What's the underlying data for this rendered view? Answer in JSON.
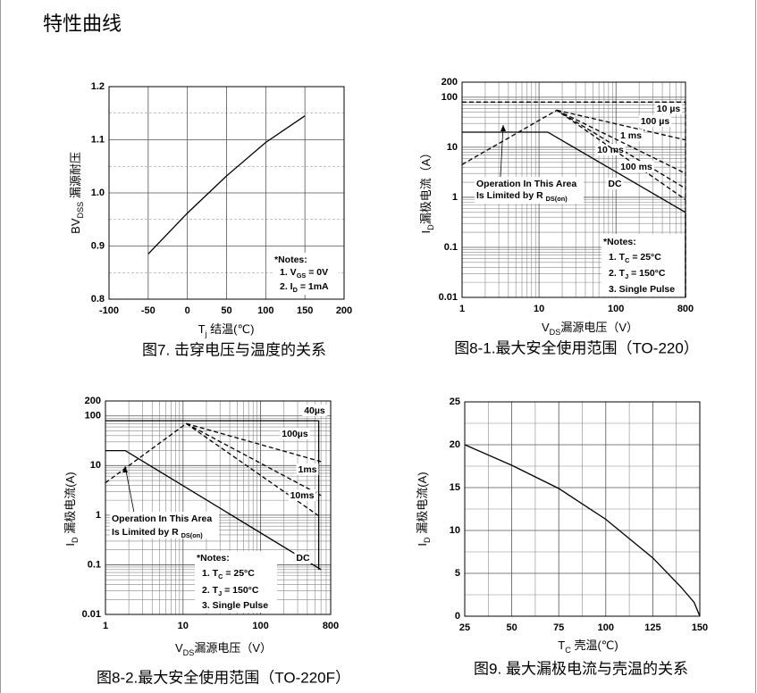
{
  "header": {
    "title": "特性曲线"
  },
  "chart_data": [
    {
      "type": "line",
      "xlabel": [
        "T",
        "j",
        " 结温(℃)"
      ],
      "ylabel": [
        "BV",
        "DSS",
        " 漏源耐压"
      ],
      "caption": "图7. 击穿电压与温度的关系",
      "x": [
        -50,
        0,
        50,
        100,
        150
      ],
      "values": [
        0.885,
        0.962,
        1.032,
        1.095,
        1.145
      ],
      "color": "#000000",
      "xlim": [
        -100,
        200
      ],
      "ylim": [
        0.8,
        1.2
      ],
      "xticks": [
        -100,
        -50,
        0,
        50,
        100,
        150,
        200
      ],
      "yticks": [
        0.8,
        0.9,
        {
          "value": 1,
          "label": "1.0"
        },
        1.1,
        1.2
      ],
      "yminor": [
        0.85,
        0.95,
        1.05,
        1.15
      ],
      "grid": true,
      "notes": [
        "*Notes:",
        [
          "1. V",
          "GS",
          " = 0V"
        ],
        [
          "2. I",
          "D",
          " = 1mA"
        ]
      ]
    },
    {
      "type": "line",
      "xscale": "log",
      "yscale": "log",
      "xlabel": [
        "V",
        "DS",
        "漏源电压（V）"
      ],
      "ylabel": [
        "I",
        "D",
        "漏极电流（A）"
      ],
      "caption": "图8-1.最大安全使用范围（TO-220）",
      "xlim": [
        1,
        800
      ],
      "ylim": [
        0.01,
        200
      ],
      "xticks": [
        1,
        10,
        100,
        800
      ],
      "yticks": [
        0.01,
        0.1,
        1,
        10,
        100,
        200
      ],
      "grid": true,
      "xminor": [
        2,
        3,
        4,
        5,
        6,
        7,
        8,
        9,
        20,
        30,
        40,
        50,
        60,
        70,
        80,
        90,
        200,
        300,
        400,
        500,
        600,
        700
      ],
      "yminor": [
        0.02,
        0.03,
        0.04,
        0.05,
        0.06,
        0.07,
        0.08,
        0.09,
        0.2,
        0.3,
        0.4,
        0.5,
        0.6,
        0.7,
        0.8,
        0.9,
        2,
        3,
        4,
        5,
        6,
        7,
        8,
        9,
        20,
        30,
        40,
        50,
        60,
        70,
        80,
        90
      ],
      "series": [
        {
          "name": "10 µs",
          "color": "#000000",
          "style": "dashed",
          "x": [
            1,
            800,
            800
          ],
          "values": [
            80,
            80,
            0.01
          ]
        },
        {
          "name": "100 µs",
          "color": "#000000",
          "style": "dashed",
          "x": [
            17,
            800
          ],
          "values": [
            55,
            14
          ]
        },
        {
          "name": "1 ms",
          "color": "#000000",
          "style": "dashed",
          "x": [
            17,
            800
          ],
          "values": [
            55,
            3
          ]
        },
        {
          "name": "10 ms",
          "color": "#000000",
          "style": "dashed",
          "x": [
            17,
            800
          ],
          "values": [
            55,
            1.5
          ]
        },
        {
          "name": "100 ms",
          "color": "#000000",
          "style": "dashed",
          "x": [
            1,
            17,
            800
          ],
          "values": [
            4.5,
            55,
            0.9
          ]
        },
        {
          "name": "DC",
          "color": "#000000",
          "style": "solid",
          "x": [
            1,
            13,
            800,
            800
          ],
          "values": [
            20,
            20,
            0.5,
            0.01
          ]
        }
      ],
      "notes": [
        "*Notes:",
        [
          "1. T",
          "C",
          " = 25°C"
        ],
        [
          "2. T",
          "J",
          " = 150°C"
        ],
        "3. Single Pulse"
      ],
      "annotation": [
        "Operation In This Area",
        [
          "Is Limited by R ",
          "DS(on)"
        ]
      ]
    },
    {
      "type": "line",
      "xscale": "log",
      "yscale": "log",
      "xlabel": [
        "V",
        "DS",
        "漏源电压（V）"
      ],
      "ylabel": [
        "I",
        "D",
        " 漏极电流(A)"
      ],
      "caption": "图8-2.最大安全使用范围（TO-220F）",
      "xlim": [
        1,
        800
      ],
      "ylim": [
        0.01,
        200
      ],
      "xticks": [
        1,
        10,
        100,
        800
      ],
      "yticks": [
        0.01,
        0.1,
        1,
        10,
        100,
        200
      ],
      "grid": true,
      "xminor": [
        2,
        3,
        4,
        5,
        6,
        7,
        8,
        9,
        20,
        30,
        40,
        50,
        60,
        70,
        80,
        90,
        200,
        300,
        400,
        500,
        600,
        700
      ],
      "yminor": [
        0.02,
        0.03,
        0.04,
        0.05,
        0.06,
        0.07,
        0.08,
        0.09,
        0.2,
        0.3,
        0.4,
        0.5,
        0.6,
        0.7,
        0.8,
        0.9,
        2,
        3,
        4,
        5,
        6,
        7,
        8,
        9,
        20,
        30,
        40,
        50,
        60,
        70,
        80,
        90
      ],
      "series": [
        {
          "name": "40µs",
          "color": "#000000",
          "style": "solid",
          "x": [
            1,
            560,
            560
          ],
          "values": [
            80,
            80,
            0.08
          ]
        },
        {
          "name": "100µs",
          "color": "#000000",
          "style": "dashed",
          "x": [
            11,
            600
          ],
          "values": [
            70,
            12
          ]
        },
        {
          "name": "1ms",
          "color": "#000000",
          "style": "dashed",
          "x": [
            11,
            600
          ],
          "values": [
            70,
            2.5
          ]
        },
        {
          "name": "10ms",
          "color": "#000000",
          "style": "dashed",
          "x": [
            1,
            11,
            600
          ],
          "values": [
            4.5,
            70,
            0.9
          ]
        },
        {
          "name": "DC",
          "color": "#000000",
          "style": "solid",
          "x": [
            1,
            1.8,
            600
          ],
          "values": [
            20,
            20,
            0.08
          ]
        }
      ],
      "notes": [
        "*Notes:",
        [
          "1. T",
          "C",
          " = 25°C"
        ],
        [
          "2. T",
          "J",
          " = 150°C"
        ],
        "3. Single Pulse"
      ],
      "annotation": [
        "Operation In This Area",
        [
          "Is Limited by R ",
          "DS(on)"
        ]
      ]
    },
    {
      "type": "line",
      "xlabel": [
        "T",
        "C",
        " 壳温(℃)"
      ],
      "ylabel": [
        "I",
        "D",
        " 漏极电流(A)"
      ],
      "caption": "图9. 最大漏极电流与壳温的关系",
      "x": [
        25,
        50,
        75,
        100,
        125,
        140,
        147,
        150
      ],
      "values": [
        20,
        17.6,
        14.9,
        11.3,
        6.8,
        3.4,
        1.6,
        0
      ],
      "color": "#000000",
      "xlim": [
        25,
        150
      ],
      "ylim": [
        0,
        25
      ],
      "xticks": [
        25,
        50,
        75,
        100,
        125,
        150
      ],
      "yticks": [
        0,
        5,
        10,
        15,
        20,
        25
      ],
      "xminor": [
        37.5,
        62.5,
        87.5,
        112.5,
        137.5
      ],
      "yminor": [
        2.5,
        7.5,
        12.5,
        17.5,
        22.5
      ],
      "grid": true
    }
  ]
}
